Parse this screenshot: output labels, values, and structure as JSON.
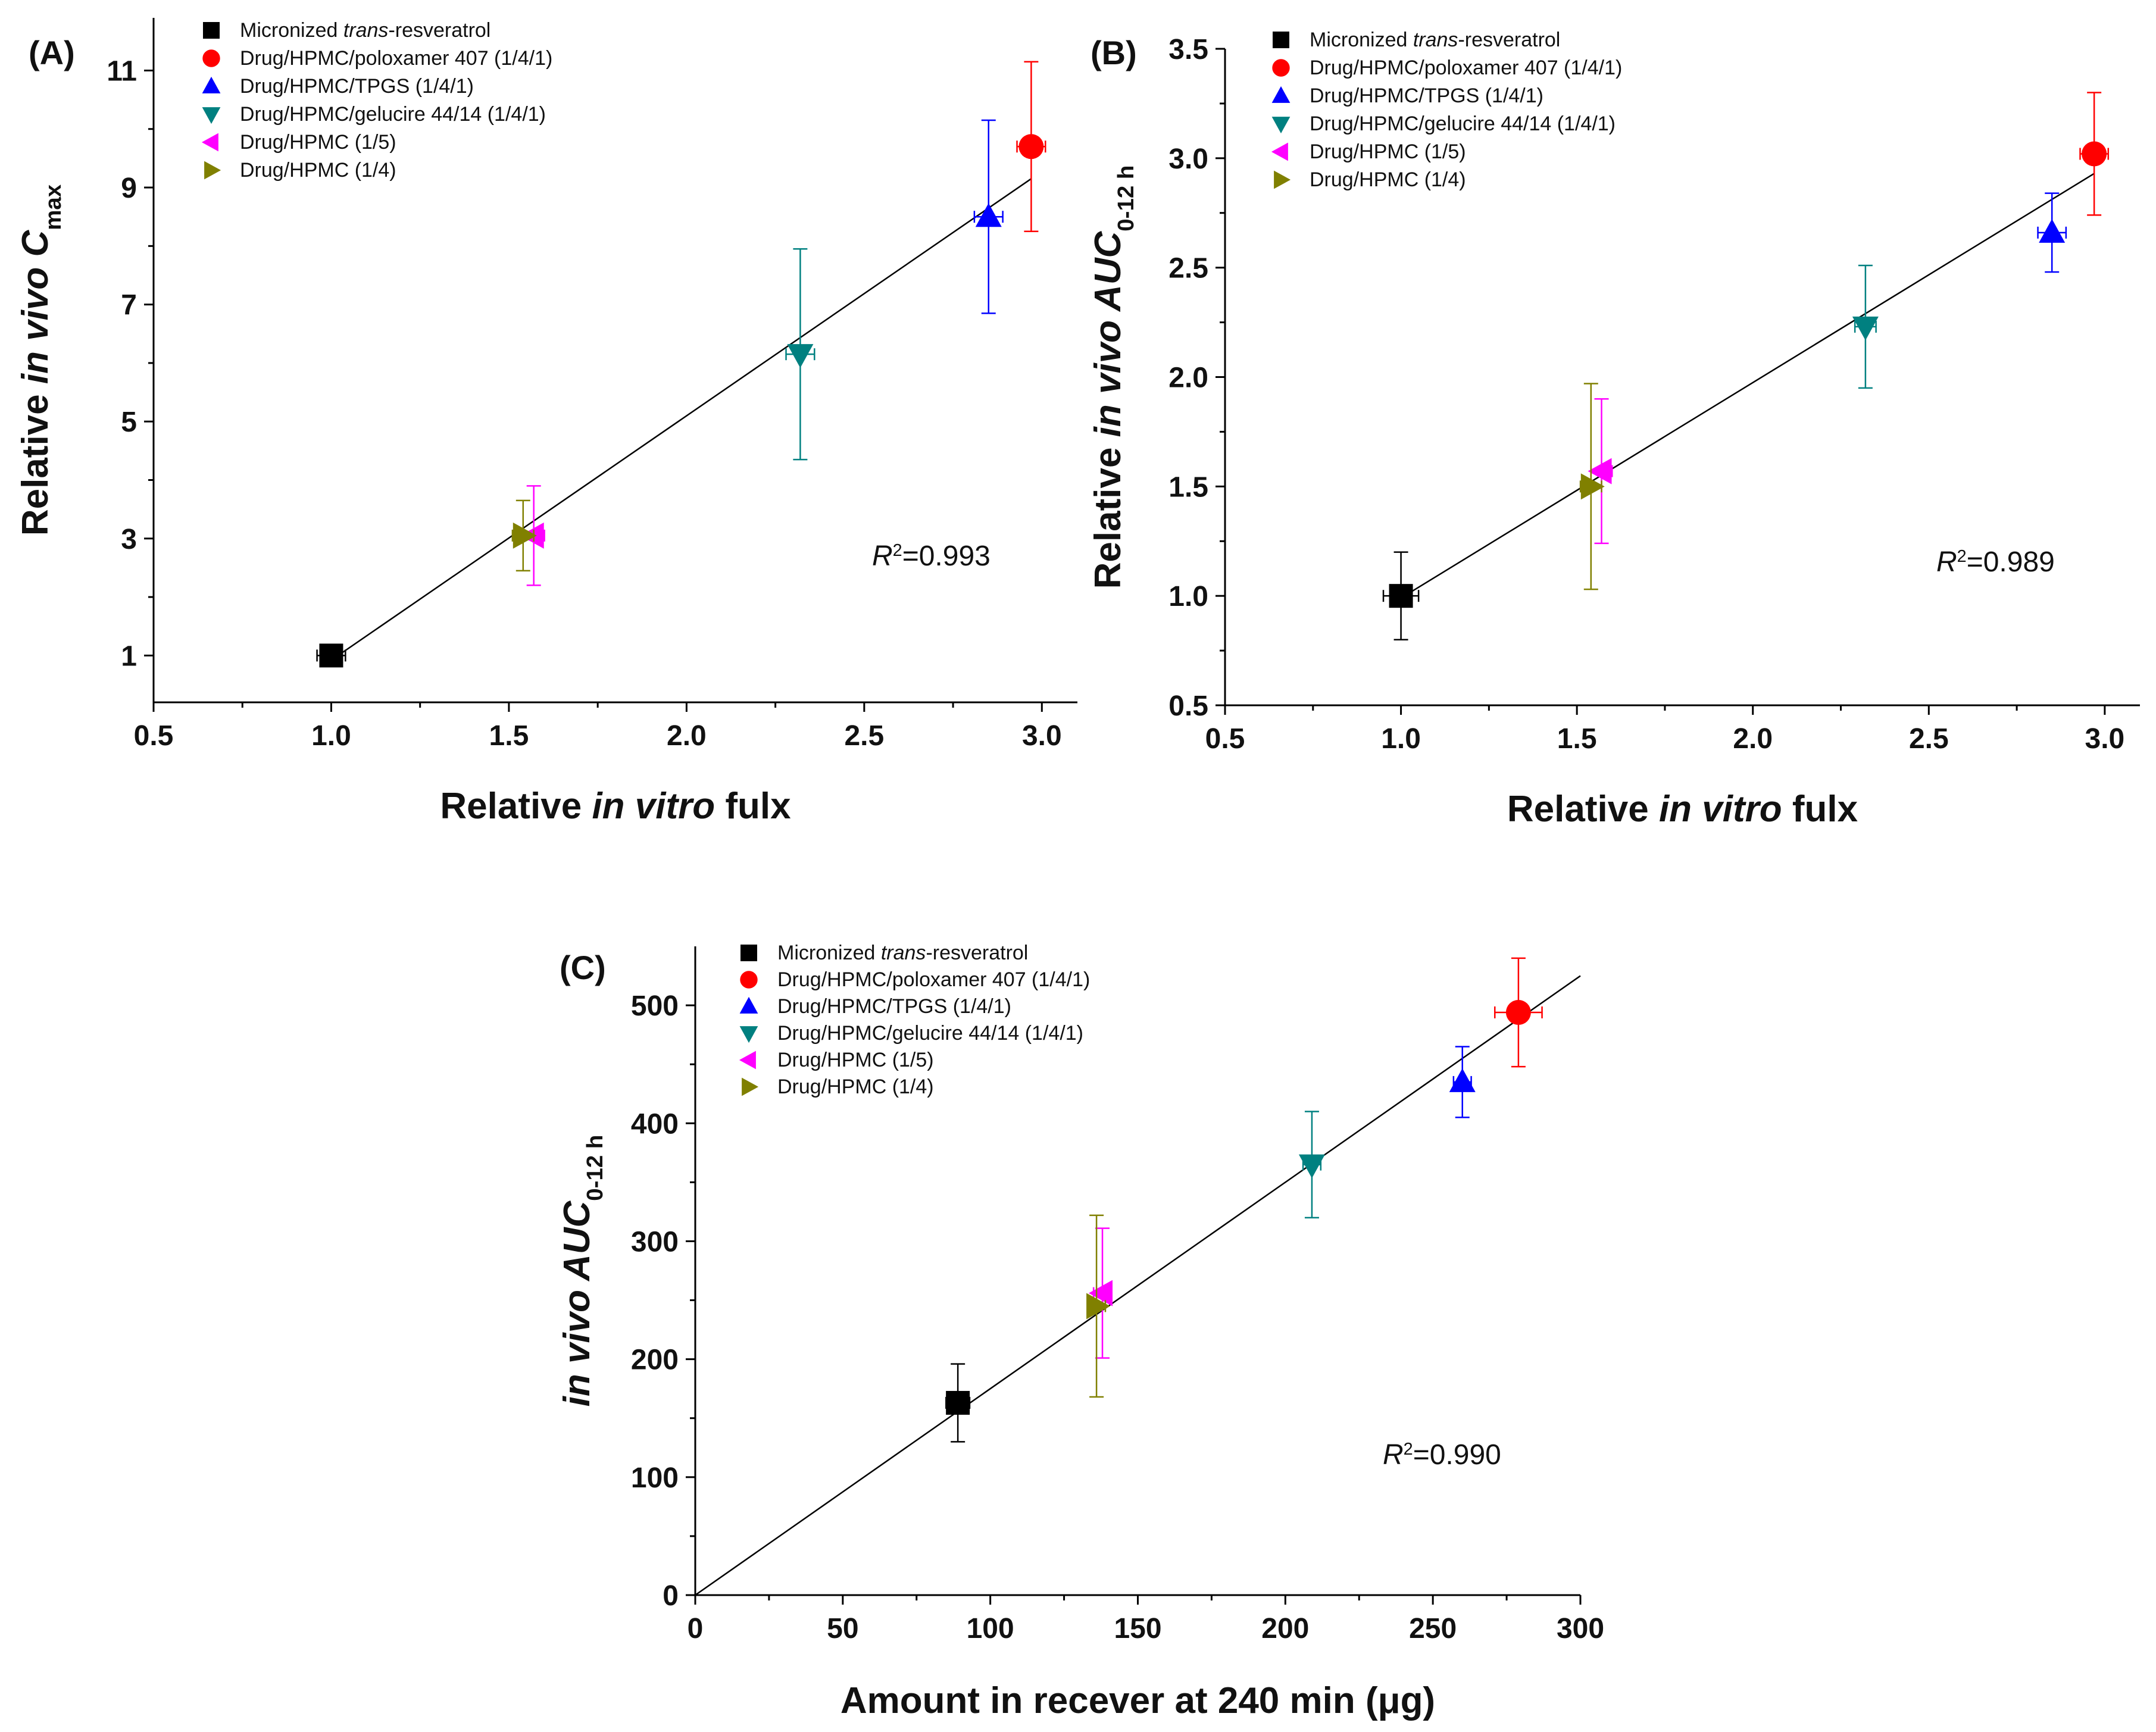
{
  "chart_data": [
    {
      "type": "scatter",
      "panel_label": "(A)",
      "xlabel_parts": [
        "Relative ",
        "in vitro",
        " fulx"
      ],
      "ylabel_parts": [
        "Relative ",
        "in vivo C",
        "max"
      ],
      "xlim": [
        0.5,
        3.1
      ],
      "ylim": [
        0.2,
        11.9
      ],
      "xticks": [
        "0.5",
        "1.0",
        "1.5",
        "2.0",
        "2.5",
        "3.0"
      ],
      "yticks": [
        "1",
        "3",
        "5",
        "7",
        "9",
        "11"
      ],
      "r2": {
        "prefix": "R",
        "sup": "2",
        "value": "=0.993"
      },
      "fit_line": {
        "x": [
          1.0,
          2.97
        ],
        "y": [
          0.92,
          9.15
        ]
      },
      "legend": {
        "position": "top-left",
        "entries": [
          {
            "parts": [
              "Micronized ",
              "trans",
              "-resveratrol"
            ]
          },
          {
            "parts": [
              "Drug/HPMC/poloxamer 407 (1/4/1)"
            ]
          },
          {
            "parts": [
              "Drug/HPMC/TPGS (1/4/1)"
            ]
          },
          {
            "parts": [
              "Drug/HPMC/gelucire 44/14 (1/4/1)"
            ]
          },
          {
            "parts": [
              "Drug/HPMC (1/5)"
            ]
          },
          {
            "parts": [
              "Drug/HPMC (1/4)"
            ]
          }
        ]
      },
      "points": [
        {
          "x": 1.0,
          "y": 1.0,
          "xerr": 0.04,
          "yerr": 0.05
        },
        {
          "x": 2.97,
          "y": 9.7,
          "xerr": 0.04,
          "yerr": 1.45
        },
        {
          "x": 2.85,
          "y": 8.5,
          "xerr": 0.04,
          "yerr": 1.65
        },
        {
          "x": 2.32,
          "y": 6.15,
          "xerr": 0.04,
          "yerr": 1.8
        },
        {
          "x": 1.57,
          "y": 3.05,
          "xerr": 0.03,
          "yerr": 0.85
        },
        {
          "x": 1.54,
          "y": 3.05,
          "xerr": 0.03,
          "yerr": 0.6
        }
      ]
    },
    {
      "type": "scatter",
      "panel_label": "(B)",
      "xlabel_parts": [
        "Relative ",
        "in vitro",
        " fulx"
      ],
      "ylabel_parts": [
        "Relative ",
        "in vivo AUC",
        "0-12 h"
      ],
      "xlim": [
        0.5,
        3.1
      ],
      "ylim": [
        0.5,
        3.5
      ],
      "xticks": [
        "0.5",
        "1.0",
        "1.5",
        "2.0",
        "2.5",
        "3.0"
      ],
      "yticks": [
        "0.5",
        "1.0",
        "1.5",
        "2.0",
        "2.5",
        "3.0",
        "3.5"
      ],
      "r2": {
        "prefix": "R",
        "sup": "2",
        "value": "=0.989"
      },
      "fit_line": {
        "x": [
          1.0,
          2.97
        ],
        "y": [
          0.99,
          2.93
        ]
      },
      "legend": {
        "position": "top-left",
        "entries": [
          {
            "parts": [
              "Micronized ",
              "trans",
              "-resveratrol"
            ]
          },
          {
            "parts": [
              "Drug/HPMC/poloxamer 407 (1/4/1)"
            ]
          },
          {
            "parts": [
              "Drug/HPMC/TPGS (1/4/1)"
            ]
          },
          {
            "parts": [
              "Drug/HPMC/gelucire 44/14 (1/4/1)"
            ]
          },
          {
            "parts": [
              "Drug/HPMC (1/5)"
            ]
          },
          {
            "parts": [
              "Drug/HPMC (1/4)"
            ]
          }
        ]
      },
      "points": [
        {
          "x": 1.0,
          "y": 1.0,
          "xerr": 0.05,
          "yerr": 0.2
        },
        {
          "x": 2.97,
          "y": 3.02,
          "xerr": 0.04,
          "yerr": 0.28
        },
        {
          "x": 2.85,
          "y": 2.66,
          "xerr": 0.04,
          "yerr": 0.18
        },
        {
          "x": 2.32,
          "y": 2.23,
          "xerr": 0.03,
          "yerr": 0.28
        },
        {
          "x": 1.57,
          "y": 1.57,
          "xerr": 0.03,
          "yerr": 0.33
        },
        {
          "x": 1.54,
          "y": 1.5,
          "xerr": 0.03,
          "yerr": 0.47
        }
      ]
    },
    {
      "type": "scatter",
      "panel_label": "(C)",
      "xlabel_parts": [
        "Amount in recever at 240 min (",
        "μ",
        "g)"
      ],
      "ylabel_parts": [
        "",
        "in vivo AUC",
        "0-12 h"
      ],
      "xlim": [
        0,
        300
      ],
      "ylim": [
        0,
        550
      ],
      "xticks": [
        "0",
        "50",
        "100",
        "150",
        "200",
        "250",
        "300"
      ],
      "yticks": [
        "0",
        "100",
        "200",
        "300",
        "400",
        "500"
      ],
      "r2": {
        "prefix": "R",
        "sup": "2",
        "value": "=0.990"
      },
      "fit_line": {
        "x": [
          0,
          300
        ],
        "y": [
          0,
          525
        ]
      },
      "legend": {
        "position": "top-left",
        "entries": [
          {
            "parts": [
              "Micronized ",
              "trans",
              "-resveratrol"
            ]
          },
          {
            "parts": [
              "Drug/HPMC/poloxamer 407 (1/4/1)"
            ]
          },
          {
            "parts": [
              "Drug/HPMC/TPGS (1/4/1)"
            ]
          },
          {
            "parts": [
              "Drug/HPMC/gelucire 44/14 (1/4/1)"
            ]
          },
          {
            "parts": [
              "Drug/HPMC (1/5)"
            ]
          },
          {
            "parts": [
              "Drug/HPMC (1/4)"
            ]
          }
        ]
      },
      "points": [
        {
          "x": 89,
          "y": 163,
          "xerr": 4,
          "yerr": 33
        },
        {
          "x": 279,
          "y": 494,
          "xerr": 8,
          "yerr": 46
        },
        {
          "x": 260,
          "y": 435,
          "xerr": 3,
          "yerr": 30
        },
        {
          "x": 209,
          "y": 365,
          "xerr": 3,
          "yerr": 45
        },
        {
          "x": 138,
          "y": 256,
          "xerr": 3,
          "yerr": 55
        },
        {
          "x": 136,
          "y": 245,
          "xerr": 3,
          "yerr": 77
        }
      ]
    }
  ],
  "series_styles": [
    {
      "name": "Micronized trans-resveratrol",
      "marker": "square",
      "color": "#000000"
    },
    {
      "name": "Drug/HPMC/poloxamer 407 (1/4/1)",
      "marker": "circle",
      "color": "#ff0000"
    },
    {
      "name": "Drug/HPMC/TPGS (1/4/1)",
      "marker": "triangle-up",
      "color": "#0000ff"
    },
    {
      "name": "Drug/HPMC/gelucire 44/14 (1/4/1)",
      "marker": "triangle-down",
      "color": "#008080"
    },
    {
      "name": "Drug/HPMC (1/5)",
      "marker": "triangle-left",
      "color": "#ff00ff"
    },
    {
      "name": "Drug/HPMC (1/4)",
      "marker": "triangle-right",
      "color": "#808000"
    }
  ]
}
